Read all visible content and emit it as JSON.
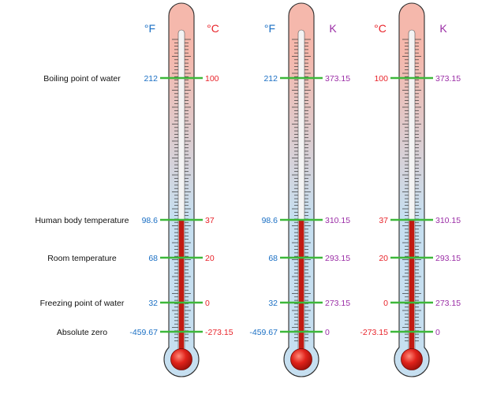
{
  "colors": {
    "fahrenheit": "#1a6fc4",
    "celsius": "#e8232a",
    "kelvin": "#9b2ea6",
    "marker_line": "#3db83a",
    "label_text": "#111111",
    "tube_top": "#f5b8ac",
    "tube_bottom": "#c6dff0",
    "mercury": "#c21a12",
    "bulb": "#e0221a"
  },
  "reference_points": [
    {
      "label": "Boiling point of water",
      "f": "212",
      "c": "100",
      "k": "373.15"
    },
    {
      "label": "Human body temperature",
      "f": "98.6",
      "c": "37",
      "k": "310.15"
    },
    {
      "label": "Room temperature",
      "f": "68",
      "c": "20",
      "k": "293.15"
    },
    {
      "label": "Freezing point of water",
      "f": "32",
      "c": "0",
      "k": "273.15"
    },
    {
      "label": "Absolute zero",
      "f": "-459.67",
      "c": "-273.15",
      "k": "0"
    }
  ],
  "thermometers": [
    {
      "name": "fahrenheit-celsius",
      "left_unit": "°F",
      "right_unit": "°C",
      "left_scale": "f",
      "right_scale": "c"
    },
    {
      "name": "fahrenheit-kelvin",
      "left_unit": "°F",
      "right_unit": "K",
      "left_scale": "f",
      "right_scale": "k"
    },
    {
      "name": "celsius-kelvin",
      "left_unit": "°C",
      "right_unit": "K",
      "left_scale": "c",
      "right_scale": "k"
    }
  ]
}
